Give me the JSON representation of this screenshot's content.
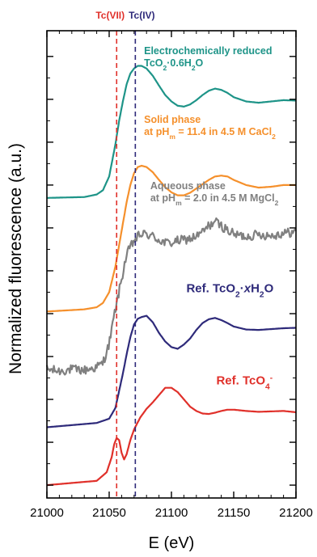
{
  "chart_data": {
    "type": "line",
    "xlabel": "E (eV)",
    "ylabel": "Normalized fluorescence (a.u.)",
    "xlim": [
      21000,
      21200
    ],
    "x_ticks": [
      "21000",
      "21050",
      "21100",
      "21150",
      "21200"
    ],
    "y_tick_labels": false,
    "ylim": [
      -0.3,
      10.6
    ],
    "grid": false,
    "reference_lines": [
      {
        "name": "Tc(VII)",
        "x": 21056,
        "color": "#e0302a",
        "style": "dashed"
      },
      {
        "name": "Tc(IV)",
        "x": 21071,
        "color": "#2e2a7a",
        "style": "dashed"
      }
    ],
    "series": [
      {
        "label_lines": [
          [
            {
              "t": "Ref. TcO"
            },
            {
              "t": "4",
              "sub": true
            },
            {
              "t": "-",
              "sup": true
            }
          ]
        ],
        "color": "#e0302a",
        "label_anchor_x": 21136,
        "label_anchor_y": 2.35,
        "x": [
          21000,
          21040,
          21048,
          21052,
          21054,
          21056,
          21058,
          21060,
          21062,
          21064,
          21067,
          21070,
          21075,
          21080,
          21085,
          21090,
          21095,
          21100,
          21105,
          21110,
          21115,
          21120,
          21125,
          21130,
          21135,
          21140,
          21145,
          21150,
          21160,
          21170,
          21180,
          21190,
          21200
        ],
        "y": [
          0.0,
          0.1,
          0.3,
          0.65,
          0.95,
          1.1,
          1.05,
          0.75,
          0.6,
          0.72,
          1.05,
          1.3,
          1.58,
          1.78,
          1.93,
          2.1,
          2.27,
          2.27,
          2.17,
          2.0,
          1.83,
          1.73,
          1.67,
          1.66,
          1.69,
          1.73,
          1.76,
          1.76,
          1.73,
          1.71,
          1.72,
          1.73,
          1.7
        ]
      },
      {
        "label_lines": [
          [
            {
              "t": "Ref. TcO"
            },
            {
              "t": "2",
              "sub": true
            },
            {
              "t": "·"
            },
            {
              "t": "x",
              "italic": true
            },
            {
              "t": "H"
            },
            {
              "t": "2",
              "sub": true
            },
            {
              "t": "O"
            }
          ]
        ],
        "color": "#2e2a7a",
        "label_anchor_x": 21112,
        "label_anchor_y": 4.5,
        "x": [
          21000,
          21040,
          21050,
          21055,
          21058,
          21061,
          21064,
          21067,
          21070,
          21073,
          21076,
          21080,
          21085,
          21090,
          21095,
          21100,
          21105,
          21110,
          21115,
          21120,
          21125,
          21130,
          21135,
          21140,
          21145,
          21150,
          21160,
          21170,
          21180,
          21190,
          21200
        ],
        "y": [
          1.35,
          1.45,
          1.55,
          1.8,
          2.2,
          2.6,
          3.05,
          3.45,
          3.75,
          3.88,
          3.92,
          3.95,
          3.8,
          3.55,
          3.35,
          3.22,
          3.18,
          3.28,
          3.42,
          3.62,
          3.78,
          3.87,
          3.9,
          3.85,
          3.78,
          3.7,
          3.63,
          3.62,
          3.64,
          3.66,
          3.67
        ]
      },
      {
        "label_lines": [
          [
            {
              "t": "Aqueous phase"
            }
          ],
          [
            {
              "t": "at pH"
            },
            {
              "t": "m",
              "sub": true
            },
            {
              "t": " = 2.0 in 4.5 M MgCl"
            },
            {
              "t": "2",
              "sub": true
            }
          ]
        ],
        "color": "#808080",
        "label_anchor_x": 21083,
        "label_anchor_y": 6.9,
        "noisy": true,
        "x": [
          21000,
          21010,
          21020,
          21030,
          21040,
          21045,
          21050,
          21055,
          21060,
          21063,
          21066,
          21070,
          21075,
          21080,
          21085,
          21090,
          21095,
          21100,
          21105,
          21110,
          21115,
          21120,
          21125,
          21130,
          21135,
          21140,
          21145,
          21150,
          21160,
          21170,
          21180,
          21190,
          21200
        ],
        "y": [
          2.7,
          2.66,
          2.7,
          2.68,
          2.75,
          2.85,
          3.3,
          4.1,
          4.8,
          5.25,
          5.5,
          5.7,
          5.85,
          5.85,
          5.8,
          5.72,
          5.65,
          5.65,
          5.7,
          5.72,
          5.75,
          5.8,
          5.9,
          6.05,
          6.15,
          6.05,
          5.95,
          5.85,
          5.8,
          5.85,
          5.82,
          5.88,
          5.9
        ]
      },
      {
        "label_lines": [
          [
            {
              "t": "Solid phase"
            }
          ],
          [
            {
              "t": "at pH"
            },
            {
              "t": "m",
              "sub": true
            },
            {
              "t": " = 11.4 in 4.5 M CaCl"
            },
            {
              "t": "2",
              "sub": true
            }
          ]
        ],
        "color": "#f5902c",
        "label_anchor_x": 21078,
        "label_anchor_y": 8.45,
        "x": [
          21000,
          21030,
          21040,
          21045,
          21050,
          21055,
          21058,
          21061,
          21064,
          21067,
          21070,
          21073,
          21076,
          21080,
          21085,
          21090,
          21095,
          21100,
          21105,
          21110,
          21115,
          21120,
          21125,
          21130,
          21135,
          21140,
          21145,
          21150,
          21160,
          21170,
          21180,
          21190,
          21200
        ],
        "y": [
          4.05,
          4.1,
          4.15,
          4.25,
          4.5,
          5.1,
          5.6,
          6.1,
          6.6,
          7.0,
          7.28,
          7.42,
          7.45,
          7.42,
          7.3,
          7.12,
          6.95,
          6.83,
          6.76,
          6.76,
          6.82,
          6.92,
          7.02,
          7.12,
          7.2,
          7.22,
          7.2,
          7.12,
          7.0,
          6.94,
          6.96,
          7.0,
          7.0
        ]
      },
      {
        "label_lines": [
          [
            {
              "t": "Electrochemically reduced"
            }
          ],
          [
            {
              "t": "TcO"
            },
            {
              "t": "2",
              "sub": true
            },
            {
              "t": "·0.6H"
            },
            {
              "t": "2",
              "sub": true
            },
            {
              "t": "O"
            }
          ]
        ],
        "color": "#1e9488",
        "label_anchor_x": 21078,
        "label_anchor_y": 10.05,
        "x": [
          21000,
          21030,
          21040,
          21045,
          21050,
          21055,
          21058,
          21061,
          21064,
          21067,
          21070,
          21073,
          21076,
          21080,
          21085,
          21090,
          21095,
          21100,
          21105,
          21110,
          21115,
          21120,
          21125,
          21130,
          21135,
          21140,
          21145,
          21150,
          21160,
          21170,
          21180,
          21190,
          21200
        ],
        "y": [
          6.7,
          6.72,
          6.78,
          6.88,
          7.2,
          7.95,
          8.5,
          8.95,
          9.35,
          9.6,
          9.72,
          9.78,
          9.78,
          9.72,
          9.55,
          9.32,
          9.1,
          8.95,
          8.85,
          8.83,
          8.88,
          8.98,
          9.1,
          9.2,
          9.25,
          9.22,
          9.15,
          9.05,
          8.95,
          8.92,
          8.95,
          8.98,
          8.97
        ]
      }
    ]
  }
}
